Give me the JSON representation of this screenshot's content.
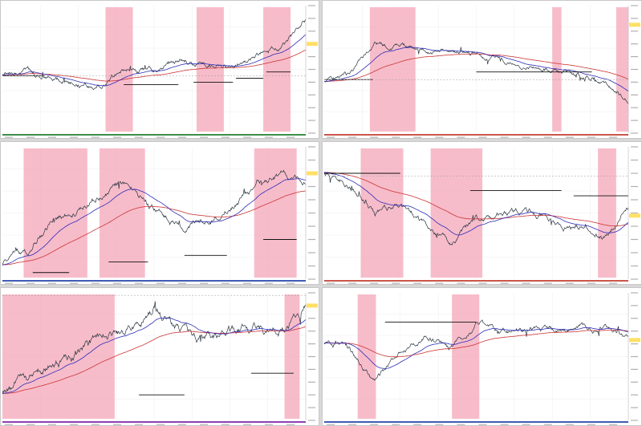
{
  "layout": {
    "cols": 2,
    "rows": 3
  },
  "colors": {
    "price": "#2a3540",
    "ma_fast": "#2b2bb8",
    "ma_slow": "#cc3333",
    "highlight": "#f4a6b8",
    "level": "#111111",
    "level_light": "#9a9a9a",
    "current_price": "#ffe066"
  },
  "chart_data": [
    {
      "type": "line",
      "panel": "top-left",
      "seed": 11,
      "trend": [
        0.55,
        0.52,
        0.58,
        0.62,
        0.6,
        0.48,
        0.5,
        0.42,
        0.45,
        0.47,
        0.4,
        0.33,
        0.12
      ],
      "volatility": 0.012,
      "highlights": [
        [
          0.34,
          0.43
        ],
        [
          0.64,
          0.73
        ],
        [
          0.86,
          0.95
        ]
      ],
      "levels": [
        [
          0.0,
          0.14,
          0.55
        ],
        [
          0.4,
          0.58,
          0.62
        ],
        [
          0.63,
          0.76,
          0.6
        ],
        [
          0.77,
          0.86,
          0.57
        ],
        [
          0.87,
          0.95,
          0.52
        ]
      ],
      "current_price": 0.3,
      "dashed_levels": [
        0.55
      ]
    },
    {
      "type": "line",
      "panel": "top-right",
      "seed": 23,
      "trend": [
        0.6,
        0.55,
        0.3,
        0.33,
        0.37,
        0.36,
        0.38,
        0.42,
        0.48,
        0.5,
        0.55,
        0.6,
        0.75
      ],
      "volatility": 0.01,
      "highlights": [
        [
          0.15,
          0.3
        ],
        [
          0.75,
          0.78
        ],
        [
          0.96,
          1.0
        ]
      ],
      "levels": [
        [
          0.0,
          0.16,
          0.58
        ],
        [
          0.5,
          0.88,
          0.52
        ]
      ],
      "current_price": 0.15,
      "dashed_levels": [
        0.58
      ]
    },
    {
      "type": "line",
      "panel": "middle-left",
      "seed": 37,
      "trend": [
        0.9,
        0.78,
        0.55,
        0.48,
        0.35,
        0.25,
        0.48,
        0.62,
        0.55,
        0.45,
        0.3,
        0.2,
        0.25
      ],
      "volatility": 0.014,
      "highlights": [
        [
          0.07,
          0.28
        ],
        [
          0.32,
          0.47
        ],
        [
          0.83,
          0.97
        ]
      ],
      "levels": [
        [
          0.1,
          0.22,
          0.95
        ],
        [
          0.35,
          0.48,
          0.87
        ],
        [
          0.6,
          0.74,
          0.82
        ],
        [
          0.86,
          0.97,
          0.7
        ]
      ],
      "current_price": 0.2,
      "dashed_levels": []
    },
    {
      "type": "line",
      "panel": "middle-right",
      "seed": 41,
      "trend": [
        0.2,
        0.3,
        0.5,
        0.45,
        0.6,
        0.72,
        0.55,
        0.5,
        0.48,
        0.55,
        0.62,
        0.7,
        0.45
      ],
      "volatility": 0.013,
      "highlights": [
        [
          0.12,
          0.26
        ],
        [
          0.35,
          0.52
        ],
        [
          0.9,
          0.96
        ]
      ],
      "levels": [
        [
          0.0,
          0.25,
          0.2
        ],
        [
          0.48,
          0.78,
          0.33
        ],
        [
          0.82,
          1.0,
          0.37
        ]
      ],
      "current_price": 0.52,
      "dashed_levels": [
        0.22
      ]
    },
    {
      "type": "line",
      "panel": "bottom-left",
      "seed": 53,
      "trend": [
        0.8,
        0.7,
        0.55,
        0.45,
        0.35,
        0.3,
        0.1,
        0.32,
        0.35,
        0.3,
        0.28,
        0.3,
        0.1
      ],
      "volatility": 0.02,
      "highlights": [
        [
          0.0,
          0.37
        ],
        [
          0.93,
          0.98
        ]
      ],
      "levels": [
        [
          0.45,
          0.6,
          0.8
        ],
        [
          0.82,
          0.96,
          0.63
        ]
      ],
      "current_price": 0.1,
      "dashed_levels": [
        0.02
      ]
    },
    {
      "type": "line",
      "panel": "bottom-right",
      "seed": 67,
      "trend": [
        0.4,
        0.45,
        0.7,
        0.45,
        0.35,
        0.45,
        0.25,
        0.3,
        0.3,
        0.28,
        0.25,
        0.28,
        0.38
      ],
      "volatility": 0.012,
      "highlights": [
        [
          0.11,
          0.17
        ],
        [
          0.42,
          0.51
        ]
      ],
      "levels": [
        [
          0.2,
          0.5,
          0.23
        ]
      ],
      "current_price": 0.37,
      "dashed_levels": []
    }
  ]
}
